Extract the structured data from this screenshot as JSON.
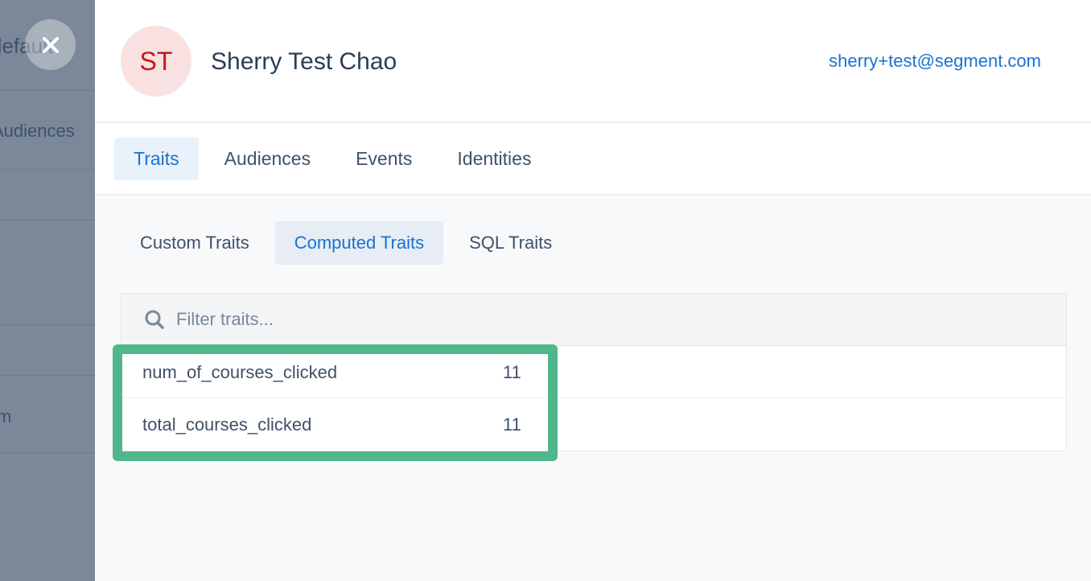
{
  "background": {
    "title_fragment": "default",
    "nav_item": "Audiences",
    "row_fragment": "m"
  },
  "profile": {
    "initials": "ST",
    "name": "Sherry Test Chao",
    "email": "sherry+test@segment.com"
  },
  "tabs": [
    {
      "label": "Traits",
      "active": true
    },
    {
      "label": "Audiences"
    },
    {
      "label": "Events"
    },
    {
      "label": "Identities"
    }
  ],
  "subtabs": [
    {
      "label": "Custom Traits"
    },
    {
      "label": "Computed Traits",
      "active": true
    },
    {
      "label": "SQL Traits"
    }
  ],
  "filter": {
    "placeholder": "Filter traits..."
  },
  "traits": [
    {
      "key": "num_of_courses_clicked",
      "value": "11"
    },
    {
      "key": "total_courses_clicked",
      "value": "11"
    }
  ],
  "colors": {
    "accent": "#1a72d1",
    "highlight": "#4fb789",
    "avatar_bg": "#fae1e1",
    "avatar_text": "#c41a1a"
  }
}
